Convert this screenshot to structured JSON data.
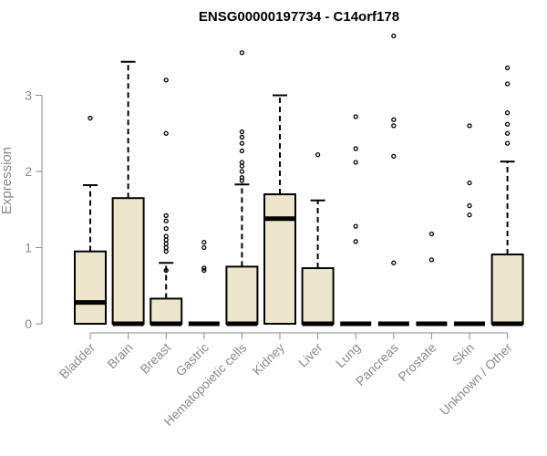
{
  "chart_data": {
    "type": "boxplot",
    "title": "ENSG00000197734 - C14orf178",
    "ylabel": "Expression",
    "xlabel": "",
    "ylim": [
      0,
      3.8
    ],
    "yticks": [
      0,
      1,
      2,
      3
    ],
    "box_fill": "#ede6cd",
    "categories": [
      "Bladder",
      "Brain",
      "Breast",
      "Gastric",
      "Hematopoietic cells",
      "Kidney",
      "Liver",
      "Lung",
      "Pancreas",
      "Prostate",
      "Skin",
      "Unknown / Other"
    ],
    "boxes": [
      {
        "min": 0,
        "q1": 0,
        "median": 0.28,
        "q3": 0.95,
        "max": 1.82,
        "outliers": [
          2.7
        ]
      },
      {
        "min": 0,
        "q1": 0,
        "median": 0,
        "q3": 1.65,
        "max": 3.44,
        "outliers": []
      },
      {
        "min": 0,
        "q1": 0,
        "median": 0,
        "q3": 0.33,
        "max": 0.8,
        "outliers": [
          3.2,
          2.5,
          1.42,
          1.35,
          1.25,
          1.15,
          1.1,
          1.05,
          1.0,
          0.95,
          0.7
        ]
      },
      {
        "min": 0,
        "q1": 0,
        "median": 0,
        "q3": 0,
        "max": 0,
        "outliers": [
          1.07,
          1.0,
          0.73,
          0.7
        ]
      },
      {
        "min": 0,
        "q1": 0,
        "median": 0,
        "q3": 0.75,
        "max": 1.83,
        "outliers": [
          3.56,
          2.52,
          2.45,
          2.37,
          2.27,
          2.12,
          2.07,
          2.0,
          1.92,
          1.88
        ]
      },
      {
        "min": 0,
        "q1": 0,
        "median": 1.38,
        "q3": 1.7,
        "max": 3.0,
        "outliers": []
      },
      {
        "min": 0,
        "q1": 0,
        "median": 0,
        "q3": 0.73,
        "max": 1.62,
        "outliers": [
          2.22
        ]
      },
      {
        "min": 0,
        "q1": 0,
        "median": 0,
        "q3": 0,
        "max": 0,
        "outliers": [
          2.72,
          2.3,
          2.12,
          1.28,
          1.08
        ]
      },
      {
        "min": 0,
        "q1": 0,
        "median": 0,
        "q3": 0,
        "max": 0,
        "outliers": [
          3.78,
          2.68,
          2.6,
          2.2,
          0.8
        ]
      },
      {
        "min": 0,
        "q1": 0,
        "median": 0,
        "q3": 0,
        "max": 0,
        "outliers": [
          1.18,
          0.84
        ]
      },
      {
        "min": 0,
        "q1": 0,
        "median": 0,
        "q3": 0,
        "max": 0,
        "outliers": [
          2.6,
          1.85,
          1.55,
          1.43
        ]
      },
      {
        "min": 0,
        "q1": 0,
        "median": 0,
        "q3": 0.91,
        "max": 2.13,
        "outliers": [
          3.36,
          3.15,
          2.77,
          2.62,
          2.5,
          2.37
        ]
      }
    ],
    "grid": false,
    "legend": "none"
  }
}
